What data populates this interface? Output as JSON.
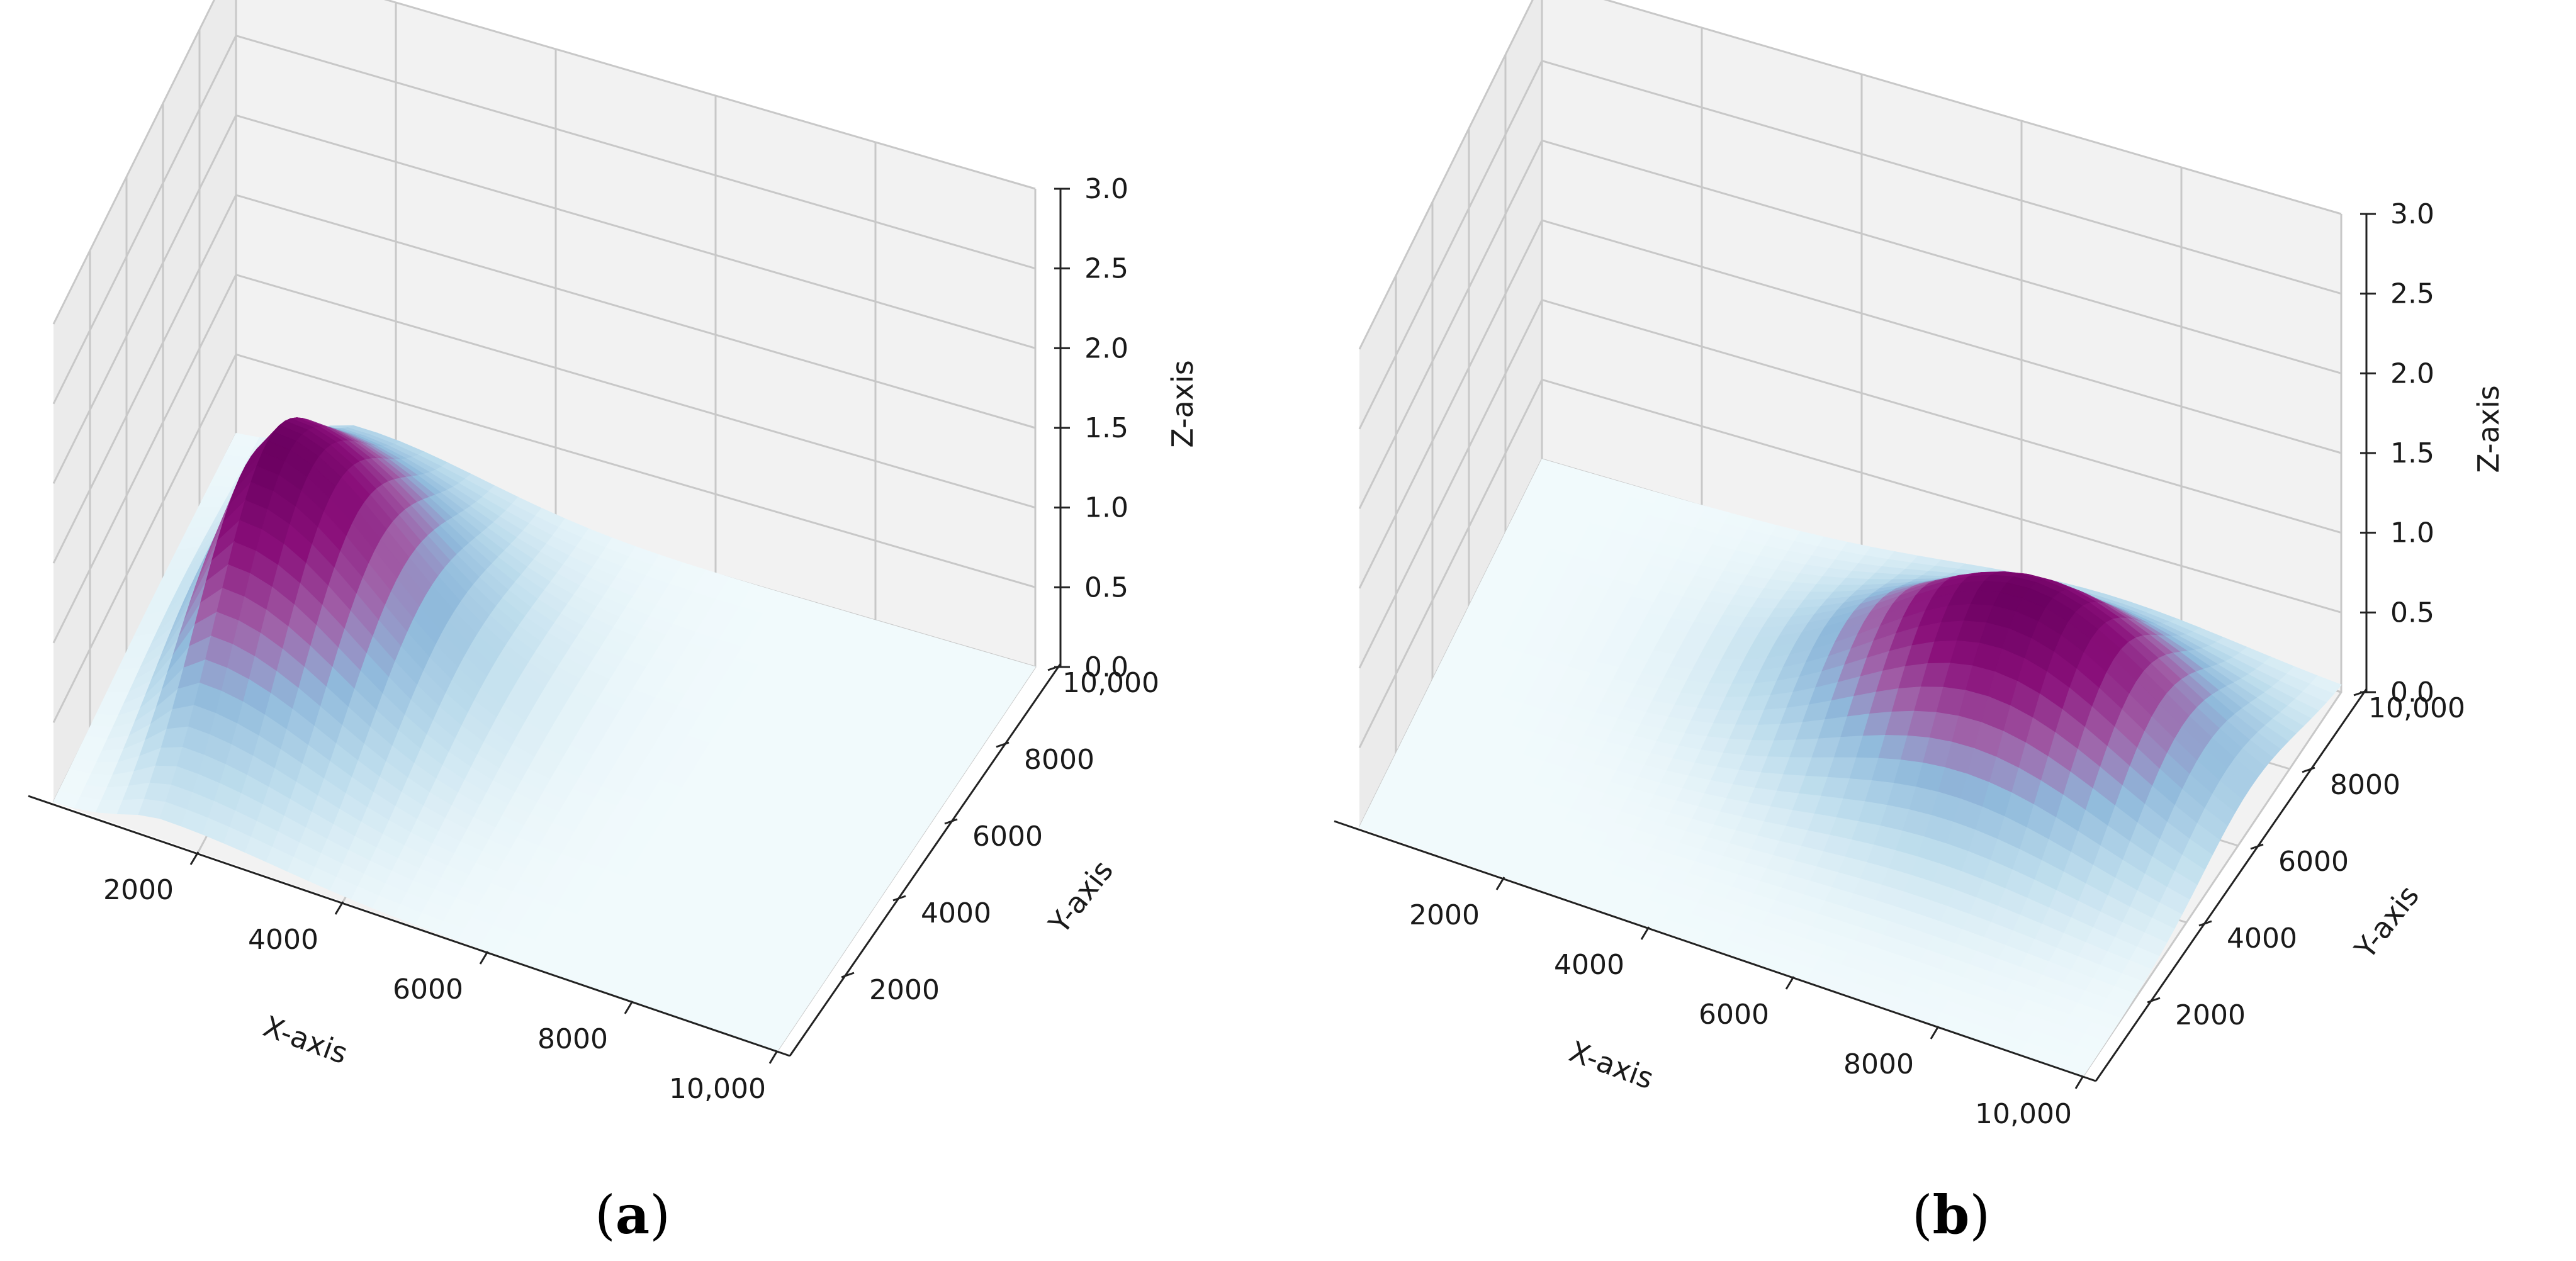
{
  "chart_data": [
    {
      "type": "surface3d",
      "caption": "(a)",
      "caption_letter": "a",
      "xlabel": "X-axis",
      "ylabel": "Y-axis",
      "zlabel": "Z-axis",
      "xlim": [
        0,
        10000
      ],
      "ylim": [
        0,
        10000
      ],
      "zlim": [
        0,
        3.0
      ],
      "x_ticks": [
        2000,
        4000,
        6000,
        8000,
        10000
      ],
      "x_tick_labels": [
        "2000",
        "4000",
        "6000",
        "8000",
        "10,000"
      ],
      "y_ticks": [
        2000,
        4000,
        6000,
        8000,
        10000
      ],
      "y_tick_labels": [
        "2000",
        "4000",
        "6000",
        "8000",
        "10,000"
      ],
      "z_ticks": [
        0,
        0.5,
        1.0,
        1.5,
        2.0,
        2.5,
        3.0
      ],
      "z_tick_labels": [
        "0.0",
        "0.5",
        "1.0",
        "1.5",
        "2.0",
        "2.5",
        "3.0"
      ],
      "grid": true,
      "colormap": [
        "#f1fafc",
        "#bcdcec",
        "#8fb9db",
        "#a05da6",
        "#8a0f7a",
        "#6a0060"
      ],
      "peak": {
        "x": 1500,
        "y": 5500,
        "z": 1.2
      }
    },
    {
      "type": "surface3d",
      "caption": "(b)",
      "caption_letter": "b",
      "xlabel": "X-axis",
      "ylabel": "Y-axis",
      "zlabel": "Z-axis",
      "xlim": [
        0,
        10000
      ],
      "ylim": [
        0,
        10000
      ],
      "zlim": [
        0,
        3.0
      ],
      "x_ticks": [
        2000,
        4000,
        6000,
        8000,
        10000
      ],
      "x_tick_labels": [
        "2000",
        "4000",
        "6000",
        "8000",
        "10,000"
      ],
      "y_ticks": [
        2000,
        4000,
        6000,
        8000,
        10000
      ],
      "y_tick_labels": [
        "2000",
        "4000",
        "6000",
        "8000",
        "10,000"
      ],
      "z_ticks": [
        0,
        0.5,
        1.0,
        1.5,
        2.0,
        2.5,
        3.0
      ],
      "z_tick_labels": [
        "0.0",
        "0.5",
        "1.0",
        "1.5",
        "2.0",
        "2.5",
        "3.0"
      ],
      "grid": true,
      "colormap": [
        "#f1fafc",
        "#bcdcec",
        "#8fb9db",
        "#a05da6",
        "#8a0f7a",
        "#6a0060"
      ],
      "peak": {
        "x": 7000,
        "y": 6500,
        "z": 1.0
      }
    }
  ]
}
